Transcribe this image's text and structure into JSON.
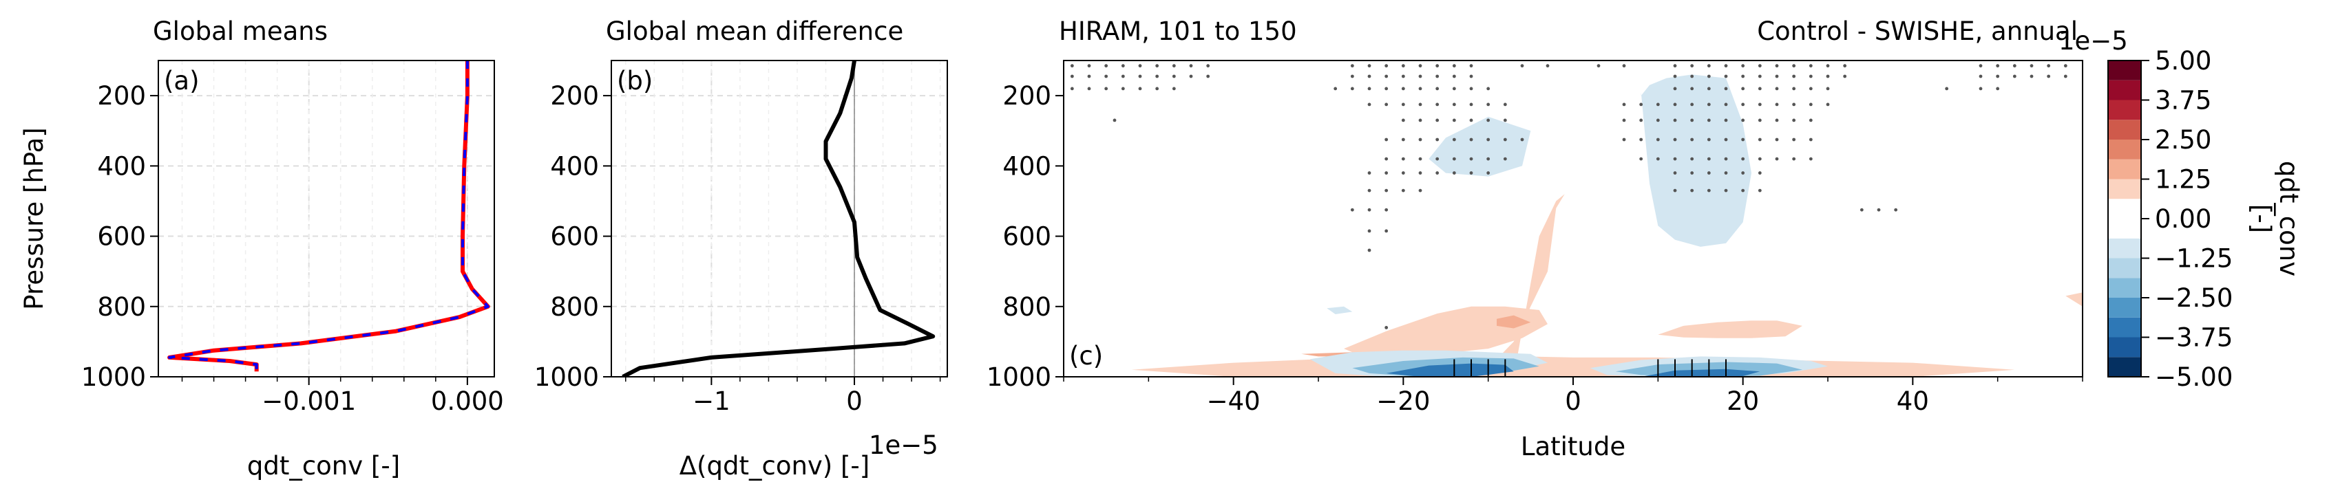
{
  "chart_data": [
    {
      "panel": "(a)",
      "type": "line",
      "title": "Global means",
      "xlabel": "qdt_conv [-]",
      "ylabel": "Pressure [hPa]",
      "xlim": [
        -0.00195,
        0.00017
      ],
      "ylim": [
        1000,
        100
      ],
      "xticks": [
        -0.001,
        0.0
      ],
      "xtick_labels": [
        "−0.001",
        "0.000"
      ],
      "yticks": [
        200,
        400,
        600,
        800,
        1000
      ],
      "ytick_labels": [
        "200",
        "400",
        "600",
        "800",
        "1000"
      ],
      "grid": true,
      "series": [
        {
          "color": "#ff0000",
          "style": "solid",
          "x": [
            0.0,
            0.0,
            -2e-05,
            -3e-05,
            -3e-05,
            3e-05,
            0.00013,
            -5e-05,
            -0.00045,
            -0.00105,
            -0.0016,
            -0.00188,
            -0.0015,
            -0.00133,
            -0.00133
          ],
          "y": [
            100,
            200,
            400,
            600,
            700,
            750,
            800,
            830,
            870,
            905,
            925,
            945,
            955,
            965,
            985
          ]
        },
        {
          "color": "#0000ff",
          "style": "dashed",
          "x": [
            0.0,
            0.0,
            -2e-05,
            -3e-05,
            -3e-05,
            3e-05,
            0.00013,
            -5e-05,
            -0.00045,
            -0.00105,
            -0.0016,
            -0.00188,
            -0.0015,
            -0.00133,
            -0.00133
          ],
          "y": [
            100,
            200,
            400,
            600,
            700,
            750,
            800,
            830,
            870,
            905,
            925,
            945,
            955,
            965,
            985
          ]
        }
      ]
    },
    {
      "panel": "(b)",
      "type": "line",
      "title": "Global mean difference",
      "xlabel": "Δ(qdt_conv) [-]",
      "offset_text": "1e−5",
      "xlim": [
        -1.7,
        0.65
      ],
      "ylim": [
        1000,
        100
      ],
      "xticks": [
        -1,
        0
      ],
      "xtick_labels": [
        "−1",
        "0"
      ],
      "yticks": [
        200,
        400,
        600,
        800,
        1000
      ],
      "ytick_labels": [
        "200",
        "400",
        "600",
        "800",
        "1000"
      ],
      "zero_line": true,
      "grid": true,
      "series": [
        {
          "color": "#000000",
          "style": "solid",
          "x": [
            0.0,
            -0.02,
            -0.1,
            -0.2,
            -0.2,
            -0.1,
            0.0,
            0.02,
            0.08,
            0.18,
            0.38,
            0.55,
            0.35,
            -0.15,
            -1.0,
            -1.5,
            -1.62
          ],
          "y": [
            100,
            150,
            250,
            330,
            380,
            460,
            560,
            660,
            720,
            810,
            850,
            885,
            905,
            920,
            945,
            975,
            1000
          ]
        }
      ]
    },
    {
      "panel": "(c)",
      "type": "heatmap",
      "title": "HIRAM, 101 to 150",
      "title_right": "Control - SWISHE, annual",
      "xlabel": "Latitude",
      "xlim": [
        -60,
        60
      ],
      "ylim": [
        1000,
        100
      ],
      "xticks": [
        -40,
        -20,
        0,
        20,
        40
      ],
      "xtick_labels": [
        "−40",
        "−20",
        "0",
        "20",
        "40"
      ],
      "yticks": [
        200,
        400,
        600,
        800,
        1000
      ],
      "ytick_labels": [
        "200",
        "400",
        "600",
        "800",
        "1000"
      ],
      "colorbar": {
        "label": "qdt_conv\n[-]",
        "offset_text": "1e−5",
        "ticks": [
          "5.00",
          "3.75",
          "2.50",
          "1.25",
          "0.00",
          "−1.25",
          "−2.50",
          "−3.75",
          "−5.00"
        ],
        "levels": [
          -5.0,
          -4.375,
          -3.75,
          -3.125,
          -2.5,
          -1.875,
          -1.25,
          -0.625,
          0.625,
          1.25,
          1.875,
          2.5,
          3.125,
          3.75,
          4.375,
          5.0
        ],
        "colors": [
          "#053061",
          "#1a5a9c",
          "#2e78b6",
          "#4f97c7",
          "#84bcdb",
          "#b3d5e8",
          "#d3e6f1",
          "#ffffff",
          "#fbd3c0",
          "#f4ae92",
          "#e38469",
          "#cf5a4b",
          "#b52434",
          "#960a2a",
          "#67001f"
        ]
      },
      "regions": [
        {
          "sign": "pos",
          "level": 1,
          "lat": [
            -7,
            -4,
            -2,
            -1,
            -2,
            -3,
            -5,
            -7,
            -9,
            -10
          ],
          "p": [
            1000,
            600,
            500,
            480,
            520,
            700,
            800,
            900,
            950,
            1000
          ]
        },
        {
          "sign": "pos",
          "level": 1,
          "lat": [
            -52,
            -40,
            -30,
            -20,
            -10,
            0,
            10,
            20,
            30,
            40,
            52,
            40,
            30,
            20,
            10,
            0,
            -10,
            -20,
            -30,
            -40
          ],
          "p": [
            980,
            960,
            950,
            945,
            940,
            945,
            945,
            950,
            955,
            960,
            980,
            1000,
            1000,
            1000,
            1000,
            1000,
            1000,
            1000,
            1000,
            1000
          ]
        },
        {
          "sign": "pos",
          "level": 1,
          "lat": [
            -27,
            -22,
            -16,
            -12,
            -8,
            -4,
            -3,
            -6,
            -10,
            -14,
            -18,
            -22,
            -26
          ],
          "p": [
            920,
            870,
            820,
            800,
            800,
            810,
            850,
            890,
            920,
            930,
            935,
            935,
            930
          ]
        },
        {
          "sign": "pos",
          "level": 1,
          "lat": [
            10,
            13,
            17,
            21,
            24,
            27,
            25,
            21,
            17,
            13
          ],
          "p": [
            880,
            855,
            845,
            840,
            840,
            855,
            885,
            890,
            890,
            888
          ]
        },
        {
          "sign": "pos",
          "level": 1,
          "lat": [
            58,
            60,
            60
          ],
          "p": [
            770,
            760,
            800
          ]
        },
        {
          "sign": "pos",
          "level": 2,
          "lat": [
            -9,
            -7,
            -5,
            -7,
            -9
          ],
          "p": [
            835,
            825,
            845,
            862,
            855
          ]
        },
        {
          "sign": "pos",
          "level": 2,
          "lat": [
            -32,
            -26,
            -20,
            -24,
            -30
          ],
          "p": [
            935,
            930,
            935,
            942,
            942
          ]
        },
        {
          "sign": "neg",
          "level": 1,
          "lat": [
            8,
            9,
            10,
            12,
            15,
            18,
            20,
            21,
            20,
            18,
            14,
            11,
            9,
            8
          ],
          "p": [
            190,
            450,
            570,
            610,
            630,
            620,
            560,
            420,
            280,
            150,
            140,
            150,
            170,
            200
          ]
        },
        {
          "sign": "neg",
          "level": 1,
          "lat": [
            -17,
            -15,
            -10,
            -5,
            -6,
            -10,
            -15
          ],
          "p": [
            380,
            320,
            260,
            300,
            400,
            430,
            420
          ]
        },
        {
          "sign": "neg",
          "level": 1,
          "lat": [
            -31,
            -26,
            -20,
            -15,
            -10,
            -5,
            -3,
            -8,
            -15,
            -22,
            -28
          ],
          "p": [
            950,
            930,
            925,
            925,
            930,
            935,
            960,
            985,
            1000,
            1000,
            990
          ]
        },
        {
          "sign": "neg",
          "level": 1,
          "lat": [
            2,
            8,
            15,
            22,
            28,
            30,
            25,
            18,
            10,
            4
          ],
          "p": [
            975,
            952,
            942,
            945,
            955,
            970,
            990,
            1000,
            1000,
            995
          ]
        },
        {
          "sign": "neg",
          "level": 3,
          "lat": [
            -26,
            -20,
            -13,
            -7,
            -4,
            -10,
            -18,
            -24
          ],
          "p": [
            975,
            955,
            945,
            948,
            970,
            995,
            1000,
            990
          ]
        },
        {
          "sign": "neg",
          "level": 3,
          "lat": [
            5,
            10,
            18,
            24,
            27,
            22,
            15,
            8
          ],
          "p": [
            985,
            965,
            958,
            962,
            980,
            997,
            1000,
            995
          ]
        },
        {
          "sign": "neg",
          "level": 5,
          "lat": [
            -22,
            -17,
            -12,
            -8,
            -7,
            -12,
            -18
          ],
          "p": [
            990,
            968,
            962,
            966,
            985,
            1000,
            1000
          ]
        },
        {
          "sign": "neg",
          "level": 5,
          "lat": [
            8,
            12,
            18,
            22,
            20,
            14
          ],
          "p": [
            1000,
            982,
            978,
            985,
            998,
            1000
          ]
        },
        {
          "sign": "neg",
          "level": 1,
          "lat": [
            -29,
            -27,
            -26,
            -28
          ],
          "p": [
            805,
            800,
            815,
            822
          ]
        }
      ],
      "stipple_rows": [
        {
          "p": 115,
          "lat": [
            -59,
            -57,
            -55,
            -53,
            -51,
            -49,
            -47,
            -45,
            -43,
            -26,
            -24,
            -22,
            -20,
            -18,
            -16,
            -14,
            -12,
            -6,
            -3,
            3,
            6,
            12,
            14,
            16,
            18,
            20,
            22,
            24,
            26,
            28,
            30,
            32,
            48,
            50,
            52,
            54,
            56,
            58
          ]
        },
        {
          "p": 145,
          "lat": [
            -59,
            -57,
            -55,
            -53,
            -51,
            -49,
            -47,
            -45,
            -43,
            -26,
            -24,
            -22,
            -20,
            -18,
            -16,
            -14,
            -12,
            12,
            14,
            16,
            18,
            20,
            22,
            24,
            26,
            28,
            30,
            32,
            48,
            50,
            52,
            54,
            56,
            58
          ]
        },
        {
          "p": 180,
          "lat": [
            -59,
            -57,
            -55,
            -53,
            -51,
            -49,
            -47,
            -28,
            -26,
            -24,
            -22,
            -20,
            -18,
            -16,
            -14,
            -12,
            -10,
            12,
            14,
            16,
            18,
            20,
            22,
            24,
            26,
            28,
            30,
            44,
            48,
            50
          ]
        },
        {
          "p": 225,
          "lat": [
            -24,
            -22,
            -20,
            -18,
            -16,
            -14,
            -12,
            -10,
            -8,
            6,
            8,
            10,
            12,
            14,
            16,
            18,
            20,
            22,
            24,
            26,
            28,
            30
          ]
        },
        {
          "p": 270,
          "lat": [
            -54,
            -20,
            -18,
            -16,
            -14,
            -12,
            -10,
            -8,
            6,
            8,
            10,
            12,
            14,
            16,
            18,
            20,
            22,
            24,
            26,
            28
          ]
        },
        {
          "p": 325,
          "lat": [
            -22,
            -20,
            -18,
            -16,
            -14,
            -12,
            -10,
            -8,
            -6,
            6,
            8,
            10,
            12,
            14,
            16,
            18,
            20,
            22,
            24,
            26,
            28
          ]
        },
        {
          "p": 380,
          "lat": [
            -22,
            -20,
            -18,
            -16,
            -14,
            -12,
            -10,
            -8,
            8,
            10,
            12,
            14,
            16,
            18,
            20,
            22,
            24,
            26,
            28
          ]
        },
        {
          "p": 420,
          "lat": [
            -24,
            -22,
            -20,
            -18,
            -16,
            -14,
            -12,
            -10,
            12,
            14,
            16,
            18,
            20,
            22
          ]
        },
        {
          "p": 470,
          "lat": [
            -24,
            -22,
            -20,
            -18,
            12,
            14,
            16,
            18,
            20,
            22
          ]
        },
        {
          "p": 525,
          "lat": [
            -26,
            -24,
            -22,
            34,
            36,
            38
          ]
        },
        {
          "p": 585,
          "lat": [
            -24,
            -22
          ]
        },
        {
          "p": 640,
          "lat": [
            -24
          ]
        },
        {
          "p": 860,
          "lat": [
            -22
          ]
        }
      ],
      "hatch_lines": {
        "lat": [
          -14,
          -12,
          -10,
          -8,
          10,
          12,
          14,
          16,
          18
        ],
        "p_top": 950,
        "p_bottom": 1000
      }
    }
  ]
}
